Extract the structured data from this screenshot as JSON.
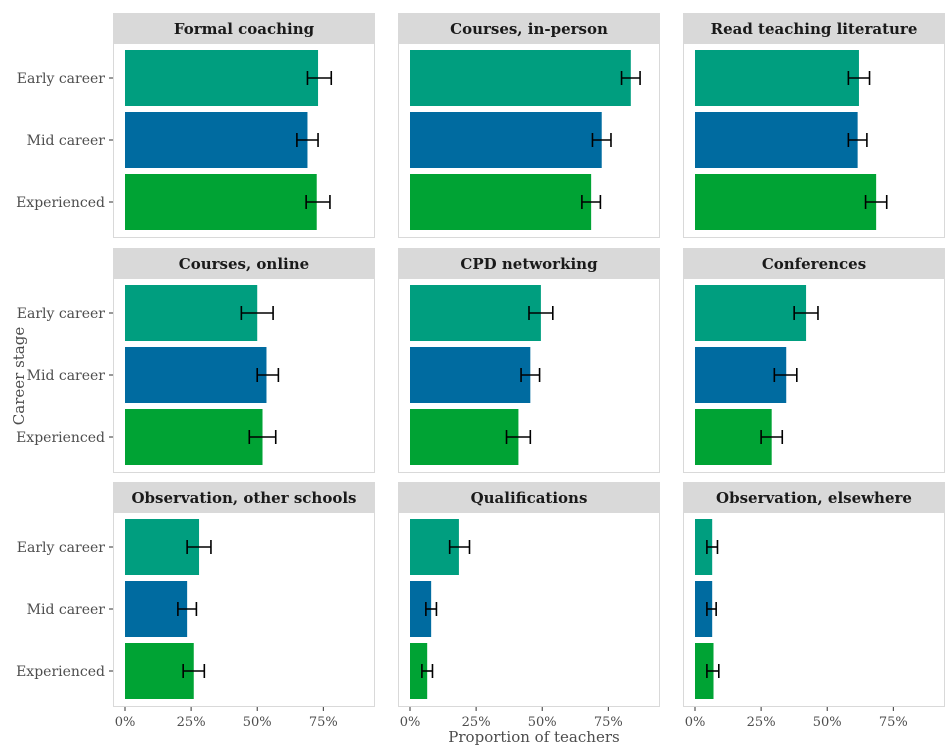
{
  "chart_data": {
    "type": "bar",
    "orientation": "horizontal",
    "facet_layout": "3x3",
    "xlabel": "Proportion of teachers",
    "ylabel": "Career stage",
    "categories": [
      "Early career",
      "Mid career",
      "Experienced"
    ],
    "xlim": [
      0,
      0.9
    ],
    "x_ticks": [
      0,
      0.25,
      0.5,
      0.75
    ],
    "x_tick_labels": [
      "0%",
      "25%",
      "50%",
      "75%"
    ],
    "grid": false,
    "legend": "none",
    "colors": {
      "Early career": "#009E7F",
      "Mid career": "#006BA0",
      "Experienced": "#00A334",
      "panel_border": "#D9D9D9",
      "strip_bg": "#D9D9D9",
      "axis_text": "#4D4D4D"
    },
    "panels": [
      {
        "title": "Formal coaching",
        "values": [
          0.73,
          0.69,
          0.725
        ],
        "err": [
          [
            0.69,
            0.78
          ],
          [
            0.65,
            0.73
          ],
          [
            0.685,
            0.775
          ]
        ]
      },
      {
        "title": "Courses, in-person",
        "values": [
          0.835,
          0.725,
          0.685
        ],
        "err": [
          [
            0.8,
            0.87
          ],
          [
            0.69,
            0.76
          ],
          [
            0.65,
            0.72
          ]
        ]
      },
      {
        "title": "Read teaching literature",
        "values": [
          0.62,
          0.615,
          0.685
        ],
        "err": [
          [
            0.58,
            0.66
          ],
          [
            0.58,
            0.65
          ],
          [
            0.645,
            0.725
          ]
        ]
      },
      {
        "title": "Courses, online",
        "values": [
          0.5,
          0.535,
          0.52
        ],
        "err": [
          [
            0.44,
            0.56
          ],
          [
            0.5,
            0.58
          ],
          [
            0.47,
            0.57
          ]
        ]
      },
      {
        "title": "CPD networking",
        "values": [
          0.495,
          0.455,
          0.41
        ],
        "err": [
          [
            0.45,
            0.54
          ],
          [
            0.42,
            0.49
          ],
          [
            0.365,
            0.455
          ]
        ]
      },
      {
        "title": "Conferences",
        "values": [
          0.42,
          0.345,
          0.29
        ],
        "err": [
          [
            0.375,
            0.465
          ],
          [
            0.3,
            0.385
          ],
          [
            0.25,
            0.33
          ]
        ]
      },
      {
        "title": "Observation, other schools",
        "values": [
          0.28,
          0.235,
          0.26
        ],
        "err": [
          [
            0.235,
            0.325
          ],
          [
            0.2,
            0.27
          ],
          [
            0.22,
            0.3
          ]
        ]
      },
      {
        "title": "Qualifications",
        "values": [
          0.185,
          0.08,
          0.065
        ],
        "err": [
          [
            0.15,
            0.225
          ],
          [
            0.06,
            0.1
          ],
          [
            0.045,
            0.085
          ]
        ]
      },
      {
        "title": "Observation, elsewhere",
        "values": [
          0.065,
          0.065,
          0.07
        ],
        "err": [
          [
            0.045,
            0.085
          ],
          [
            0.045,
            0.08
          ],
          [
            0.045,
            0.09
          ]
        ]
      }
    ]
  }
}
